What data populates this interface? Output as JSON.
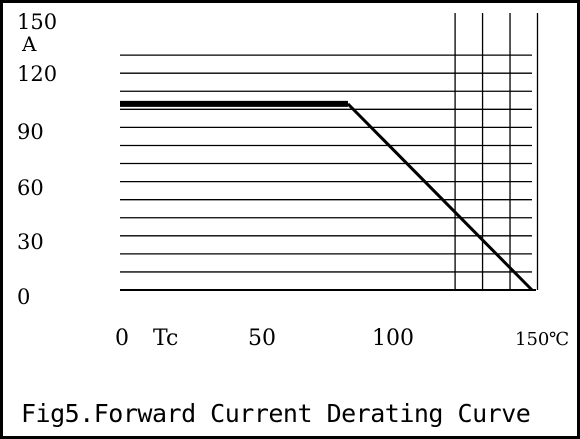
{
  "chart_data": {
    "type": "line",
    "caption": "Fig5.Forward Current Derating Curve",
    "y_unit": "A",
    "x_unit": "℃",
    "x_axis_name": "Tc",
    "y_ticks": [
      "150",
      "120",
      "90",
      "60",
      "30",
      "0"
    ],
    "x_ticks": [
      "0",
      "50",
      "100",
      "150"
    ],
    "xlim": [
      0,
      150
    ],
    "ylim": [
      0,
      150
    ],
    "horizontal_gridlines": [
      10,
      20,
      30,
      40,
      50,
      60,
      70,
      80,
      90,
      100,
      110,
      120,
      130
    ],
    "vertical_gridlines": [
      122,
      132,
      142,
      152
    ],
    "series": [
      {
        "x": [
          0,
          83,
          150
        ],
        "y": [
          103,
          103,
          0
        ]
      }
    ],
    "grid": true,
    "colors": {
      "line": "#000000",
      "grid": "#000000"
    }
  }
}
